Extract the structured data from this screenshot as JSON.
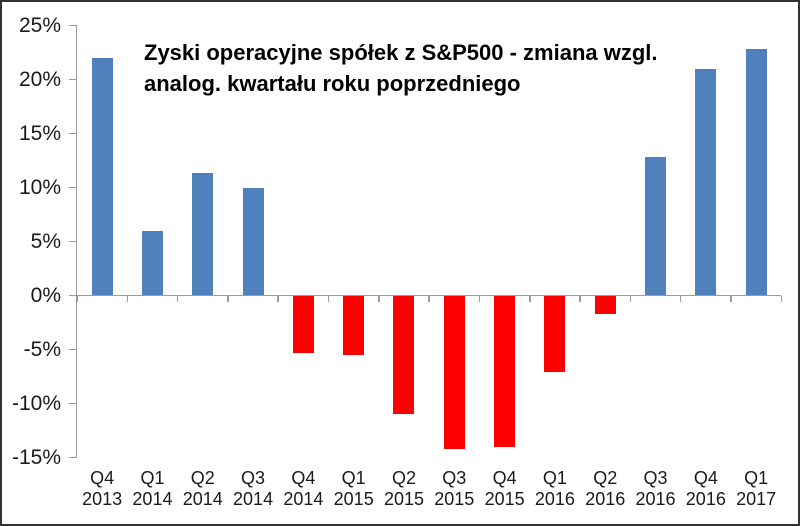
{
  "chart_data": {
    "type": "bar",
    "title": "Zyski operacyjne spółek z S&P500 - zmiana wzgl. analog. kwartału roku poprzedniego",
    "title_lines": [
      "Zyski operacyjne spółek z S&P500 - zmiana wzgl.",
      "analog. kwartału roku poprzedniego"
    ],
    "categories": [
      "Q4 2013",
      "Q1 2014",
      "Q2 2014",
      "Q3 2014",
      "Q4 2014",
      "Q1 2015",
      "Q2 2015",
      "Q3 2015",
      "Q4 2015",
      "Q1 2016",
      "Q2 2016",
      "Q3 2016",
      "Q4 2016",
      "Q1 2017"
    ],
    "category_lines": [
      [
        "Q4",
        "2013"
      ],
      [
        "Q1",
        "2014"
      ],
      [
        "Q2",
        "2014"
      ],
      [
        "Q3",
        "2014"
      ],
      [
        "Q4",
        "2014"
      ],
      [
        "Q1",
        "2015"
      ],
      [
        "Q2",
        "2015"
      ],
      [
        "Q3",
        "2015"
      ],
      [
        "Q4",
        "2015"
      ],
      [
        "Q1",
        "2016"
      ],
      [
        "Q2",
        "2016"
      ],
      [
        "Q3",
        "2016"
      ],
      [
        "Q4",
        "2016"
      ],
      [
        "Q1",
        "2017"
      ]
    ],
    "values": [
      22.0,
      6.0,
      11.3,
      10.0,
      -5.3,
      -5.5,
      -11.0,
      -14.2,
      -14.0,
      -7.1,
      -1.7,
      12.8,
      21.0,
      22.8
    ],
    "unit": "%",
    "ylim": [
      -15,
      25
    ],
    "ytick_step": 5,
    "ytick_labels": [
      "25%",
      "20%",
      "15%",
      "10%",
      "5%",
      "0%",
      "-5%",
      "-10%",
      "-15%"
    ],
    "xlabel": "",
    "ylabel": "",
    "grid": false,
    "legend": null,
    "colors": {
      "positive_bar": "#4F81BD",
      "negative_bar": "#FF0000",
      "axis": "#9A9A9A",
      "label_text": "#1A1A1A",
      "title_text": "#000000",
      "frame_border": "#333333",
      "background": "#FFFFFF"
    }
  }
}
